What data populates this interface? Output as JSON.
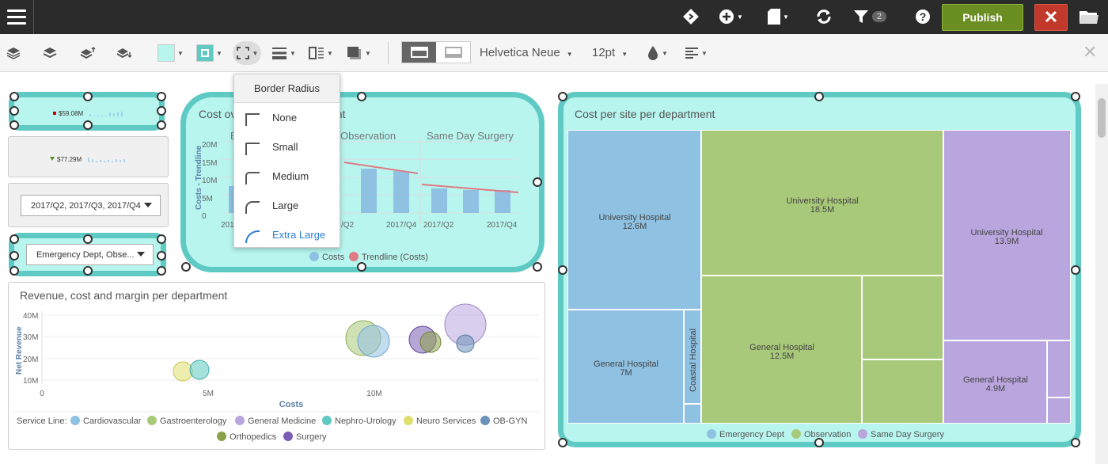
{
  "topbar": {
    "filter_count": "2",
    "publish_label": "Publish",
    "close_label": "✕"
  },
  "toolbar": {
    "font_family": "Helvetica Neue",
    "font_size": "12pt",
    "fill_color": "#b7f5ee",
    "border_color": "#5fc9c3"
  },
  "border_radius_menu": {
    "title": "Border Radius",
    "options": [
      "None",
      "Small",
      "Medium",
      "Large",
      "Extra Large"
    ],
    "selected": "Extra Large"
  },
  "kpi": {
    "kpi1_value": "$59.08M",
    "kpi2_value": "$77.29M"
  },
  "filters": {
    "period": "2017/Q2, 2017/Q3, 2017/Q4",
    "department": "Emergency Dept, Obse..."
  },
  "cost_chart": {
    "title_left": "Cost ov",
    "title_right": "ent",
    "ylabel": "Costs - Trendline",
    "yticks": [
      "20M",
      "15M",
      "10M",
      "5M",
      "0"
    ],
    "groups": [
      "Observation",
      "Same Day Surgery"
    ],
    "xticks": [
      "201",
      "/Q2",
      "2017/Q4",
      "2017/Q2",
      "2017/Q4"
    ],
    "legend": [
      "Costs",
      "Trendline (Costs)"
    ]
  },
  "treemap": {
    "title": "Cost per site per department",
    "cells": [
      {
        "label": "University Hospital",
        "value": "12.6M"
      },
      {
        "label": "General Hospital",
        "value": "7M"
      },
      {
        "label": "Coastal Hospital",
        "value": ""
      },
      {
        "label": "University Hospital",
        "value": "18.5M"
      },
      {
        "label": "General Hospital",
        "value": "12.5M"
      },
      {
        "label": "University Hospital",
        "value": "13.9M"
      },
      {
        "label": "General Hospital",
        "value": "4.9M"
      }
    ],
    "legend": [
      "Emergency Dept",
      "Observation",
      "Same Day Surgery"
    ]
  },
  "bubble_chart": {
    "title": "Revenue, cost and margin per department",
    "ylabel": "Net Revenue",
    "xlabel": "Costs",
    "yticks": [
      "40M",
      "30M",
      "20M",
      "10M"
    ],
    "xticks": [
      "0",
      "5M",
      "10M"
    ],
    "legend_label": "Service Line:",
    "legend": [
      "Cardiovascular",
      "Gastroenterology",
      "General Medicine",
      "Nephro-Urology",
      "Neuro Services",
      "OB-GYN",
      "Orthopedics",
      "Surgery"
    ]
  },
  "colors": {
    "blue": "#8fc1e3",
    "green": "#a9c97a",
    "purple": "#b9a6de",
    "teal": "#5fc9c3",
    "red": "#e07a84"
  }
}
